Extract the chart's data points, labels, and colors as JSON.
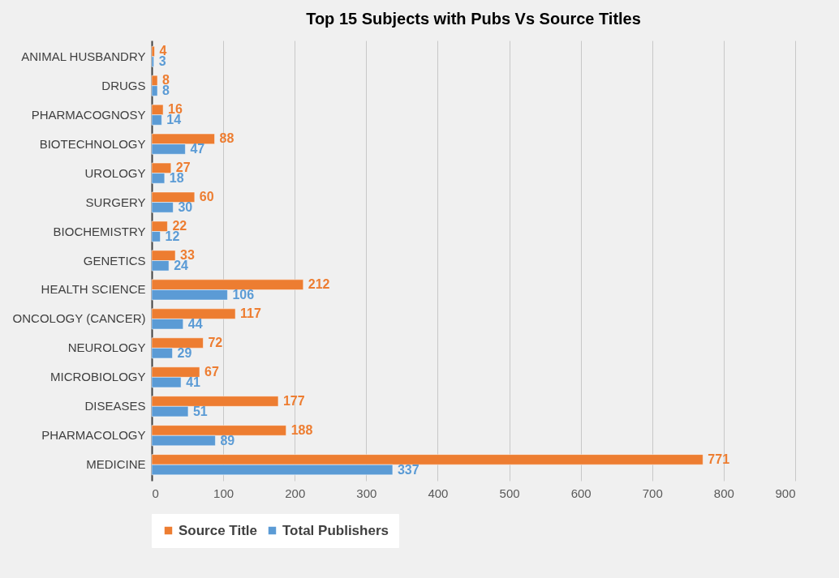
{
  "chart_data": {
    "type": "bar",
    "orientation": "horizontal",
    "title": "Top 15 Subjects with Pubs Vs Source Titles",
    "categories": [
      "ANIMAL HUSBANDRY",
      "DRUGS",
      "PHARMACOGNOSY",
      "BIOTECHNOLOGY",
      "UROLOGY",
      "SURGERY",
      "BIOCHEMISTRY",
      "GENETICS",
      "HEALTH SCIENCE",
      "ONCOLOGY (CANCER)",
      "NEUROLOGY",
      "MICROBIOLOGY",
      "DISEASES",
      "PHARMACOLOGY",
      "MEDICINE"
    ],
    "series": [
      {
        "name": "Source Title",
        "color": "#ed7d31",
        "values": [
          4,
          8,
          16,
          88,
          27,
          60,
          22,
          33,
          212,
          117,
          72,
          67,
          177,
          188,
          771
        ]
      },
      {
        "name": "Total Publishers",
        "color": "#5b9bd5",
        "values": [
          3,
          8,
          14,
          47,
          18,
          30,
          12,
          24,
          106,
          44,
          29,
          41,
          51,
          89,
          337
        ]
      }
    ],
    "xlim": [
      0,
      900
    ],
    "xticks": [
      0,
      100,
      200,
      300,
      400,
      500,
      600,
      700,
      800,
      900
    ],
    "grid": "x",
    "legend": "bottom",
    "data_labels": true
  }
}
